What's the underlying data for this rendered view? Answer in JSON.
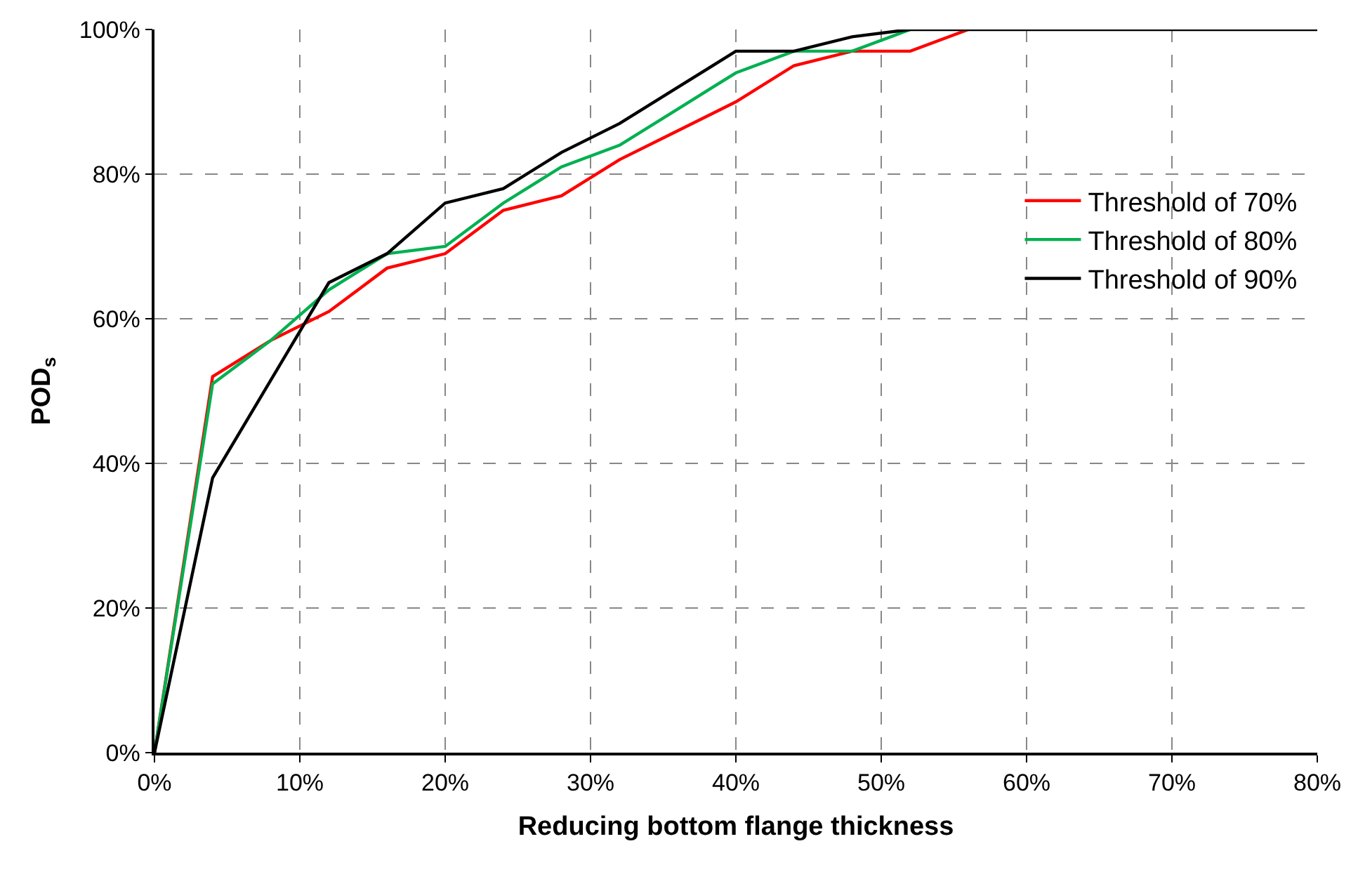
{
  "chart_data": {
    "type": "line",
    "xlabel": "Reducing bottom flange thickness",
    "ylabel": "POD$_{s}$",
    "xlim": [
      0,
      80
    ],
    "xticks": [
      {
        "value": 0,
        "label": "0%"
      },
      {
        "value": 10,
        "label": "10%"
      },
      {
        "value": 20,
        "label": "20%"
      },
      {
        "value": 30,
        "label": "30%"
      },
      {
        "value": 40,
        "label": "40%"
      },
      {
        "value": 50,
        "label": "50%"
      },
      {
        "value": 60,
        "label": "60%"
      },
      {
        "value": 70,
        "label": "70%"
      },
      {
        "value": 80,
        "label": "80%"
      }
    ],
    "ylim": [
      0,
      100
    ],
    "yticks": [
      {
        "value": 0,
        "label": "0%"
      },
      {
        "value": 20,
        "label": "20%"
      },
      {
        "value": 40,
        "label": "40%"
      },
      {
        "value": 60,
        "label": "60%"
      },
      {
        "value": 80,
        "label": "80%"
      },
      {
        "value": 100,
        "label": "100%"
      }
    ],
    "grid": true,
    "legend": "right",
    "marker": "none",
    "line_style": "solid",
    "series": [
      {
        "name": "Threshold of 70%",
        "color": "#ff0000",
        "x": [
          0,
          4,
          8,
          12,
          16,
          20,
          24,
          28,
          32,
          36,
          40,
          44,
          48,
          52,
          56
        ],
        "values": [
          0,
          52,
          57,
          61,
          67,
          69,
          75,
          77,
          82,
          86,
          90,
          95,
          97,
          97,
          100
        ]
      },
      {
        "name": "Threshold of 80%",
        "color": "#00b050",
        "x": [
          0,
          4,
          8,
          12,
          16,
          20,
          24,
          28,
          32,
          36,
          40,
          44,
          48,
          52
        ],
        "values": [
          0,
          51,
          57,
          64,
          69,
          70,
          76,
          81,
          84,
          89,
          94,
          97,
          97,
          100
        ]
      },
      {
        "name": "Threshold of 90%",
        "color": "#000000",
        "x": [
          0,
          4,
          12,
          16,
          20,
          24,
          28,
          32,
          36,
          40,
          44,
          48,
          52,
          80
        ],
        "values": [
          0,
          38,
          65,
          69,
          76,
          78,
          83,
          87,
          92,
          97,
          97,
          99,
          100,
          100
        ]
      }
    ]
  }
}
